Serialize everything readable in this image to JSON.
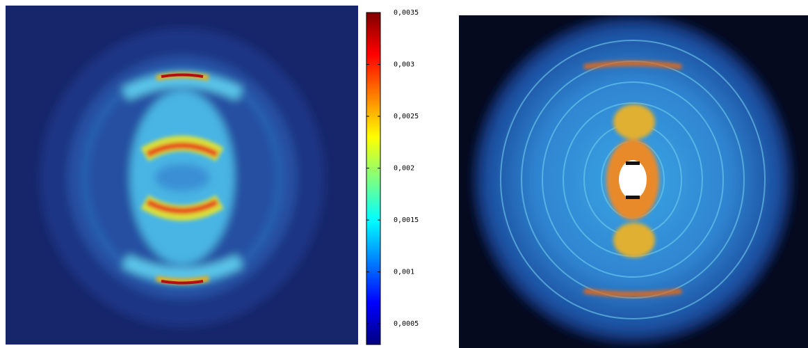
{
  "chart_data": {
    "type": "colorbar",
    "clim": [
      0.0003,
      0.0035
    ],
    "ticks": [
      {
        "value": 0.0005,
        "label": "0,0005"
      },
      {
        "value": 0.001,
        "label": "0,001"
      },
      {
        "value": 0.0015,
        "label": "0,0015"
      },
      {
        "value": 0.002,
        "label": "0,002"
      },
      {
        "value": 0.0025,
        "label": "0,0025"
      },
      {
        "value": 0.003,
        "label": "0,003"
      },
      {
        "value": 0.0035,
        "label": "0,0035"
      }
    ],
    "colormap": [
      "#00007f",
      "#0000ff",
      "#007fff",
      "#00ffff",
      "#7fff7f",
      "#ffff00",
      "#ff7f00",
      "#ff0000",
      "#7f0000"
    ]
  }
}
